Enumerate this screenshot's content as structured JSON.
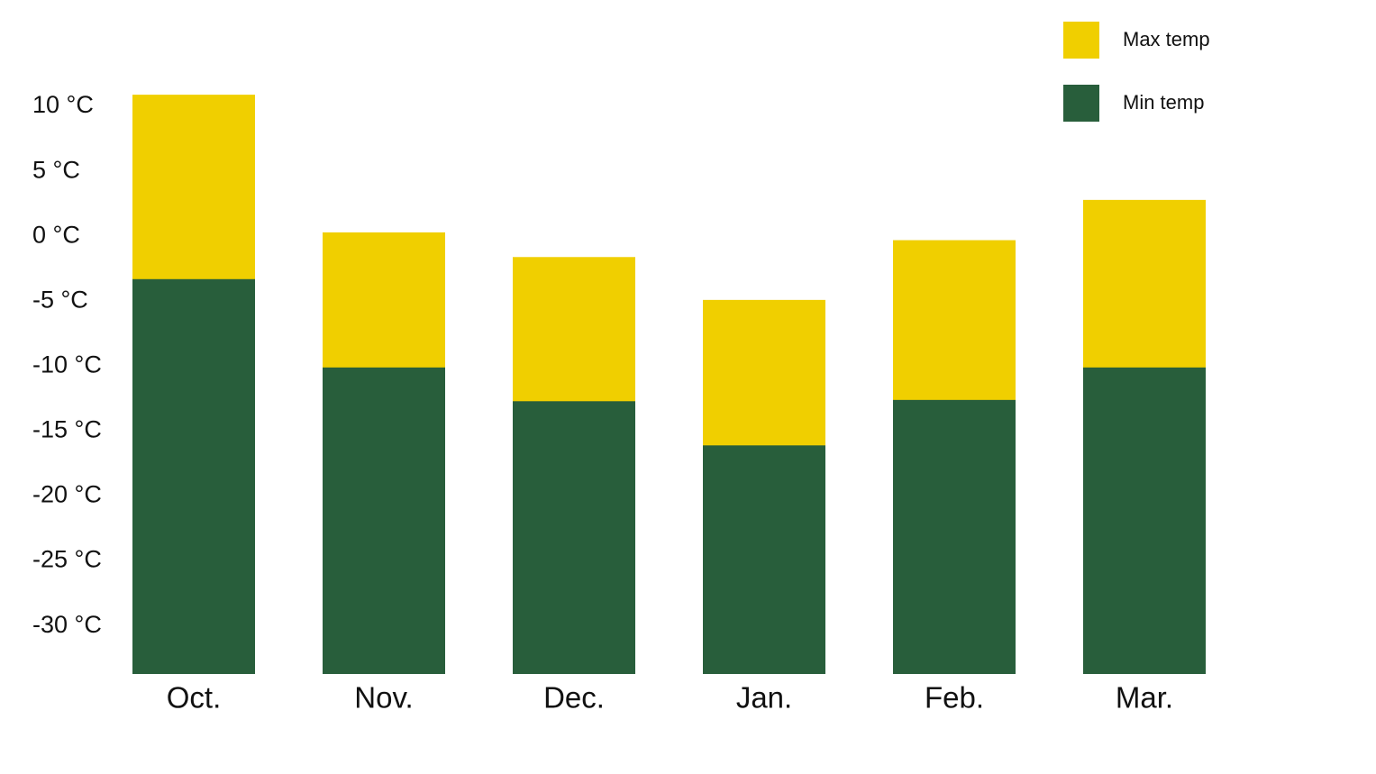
{
  "chart_data": {
    "type": "bar",
    "categories": [
      "Oct.",
      "Nov.",
      "Dec.",
      "Jan.",
      "Feb.",
      "Mar."
    ],
    "series": [
      {
        "name": "Max temp",
        "color": "#f0cf00",
        "values": [
          10.9,
          0.3,
          -1.6,
          -4.9,
          -0.3,
          2.8
        ]
      },
      {
        "name": "Min temp",
        "color": "#285e3b",
        "values": [
          -3.3,
          -10.1,
          -12.7,
          -16.1,
          -12.6,
          -10.1
        ]
      }
    ],
    "ylim": [
      -33.7,
      15
    ],
    "yticks": [
      {
        "value": 10,
        "label": "10 °C"
      },
      {
        "value": 5,
        "label": "5 °C"
      },
      {
        "value": 0,
        "label": "0 °C"
      },
      {
        "value": -5,
        "label": "-5 °C"
      },
      {
        "value": -10,
        "label": "-10 °C"
      },
      {
        "value": -15,
        "label": "-15 °C"
      },
      {
        "value": -20,
        "label": "-20 °C"
      },
      {
        "value": -25,
        "label": "-25 °C"
      },
      {
        "value": -30,
        "label": "-30 °C"
      }
    ],
    "grid": false,
    "legend": "top-right"
  }
}
